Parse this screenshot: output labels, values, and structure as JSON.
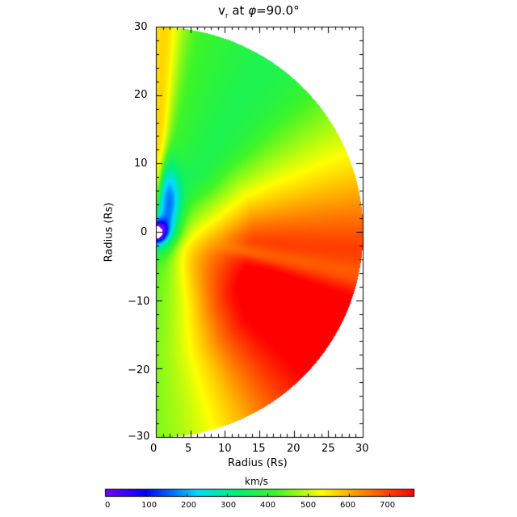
{
  "chart_data": {
    "type": "heatmap",
    "title_parts": {
      "var": "v",
      "sub": "r",
      "rest": " at ",
      "phi": "φ",
      "eq": "=90.0°"
    },
    "xlabel": "Radius (Rs)",
    "ylabel": "Radius (Rs)",
    "xlim": [
      0,
      30
    ],
    "ylim": [
      -30,
      30
    ],
    "x_ticks": [
      "0",
      "5",
      "10",
      "15",
      "20",
      "25",
      "30"
    ],
    "y_ticks": [
      "30",
      "20",
      "10",
      "0",
      "−10",
      "−20",
      "−30"
    ],
    "domain": "half-disk, radius 30 Rs, inner boundary ~1 Rs",
    "colorbar": {
      "label": "km/s",
      "range": [
        0,
        760
      ],
      "ticks": [
        "0",
        "100",
        "200",
        "300",
        "400",
        "500",
        "600",
        "700"
      ]
    },
    "field_features": [
      {
        "region": "near inner boundary (0,0..2)",
        "value": 0
      },
      {
        "region": "blue channel along x≈2, y≈3..10",
        "value": 220
      },
      {
        "region": "green band tilted upward, x≈5..15",
        "value": 420
      },
      {
        "region": "yellow near pole axis top",
        "value": 560
      },
      {
        "region": "red plateau, outer right (x≈20..30, y≈-20..10)",
        "value": 700
      },
      {
        "region": "yellow slow stripe from (7,-3) to (30,-8)",
        "value": 540
      }
    ]
  }
}
